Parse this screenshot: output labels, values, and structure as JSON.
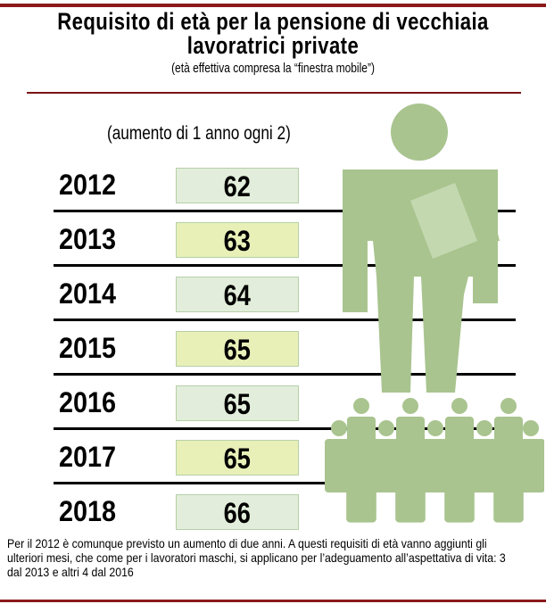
{
  "header": {
    "title_line1": "Requisito di età per la pensione di vecchiaia",
    "title_line2": "lavoratrici private",
    "subtitle": "(età effettiva compresa la “finestra mobile”)"
  },
  "note": "(aumento di 1 anno ogni  2)",
  "chart_data": {
    "type": "table",
    "categories": [
      "2012",
      "2013",
      "2014",
      "2015",
      "2016",
      "2017",
      "2018"
    ],
    "values": [
      "62",
      "63",
      "64",
      "65",
      "65",
      "65",
      "66"
    ],
    "box_colors": [
      "#e2eedb",
      "#e8f0b8",
      "#e2eedb",
      "#e8f0b8",
      "#e2eedb",
      "#e8f0b8",
      "#e2eedb"
    ]
  },
  "footnote": "Per il 2012 è comunque previsto un aumento di due anni. A questi requisiti di età vanno aggiunti gli ulteriori mesi, che come per i lavoratori maschi, si applicano per l’adeguamento all’aspettativa di vita: 3 dal 2013 e altri 4 dal 2016",
  "colors": {
    "accent": "#8b1a1a",
    "figure": "#a9c48f"
  },
  "icons": [
    "businessman-icon",
    "crowd-icon"
  ]
}
